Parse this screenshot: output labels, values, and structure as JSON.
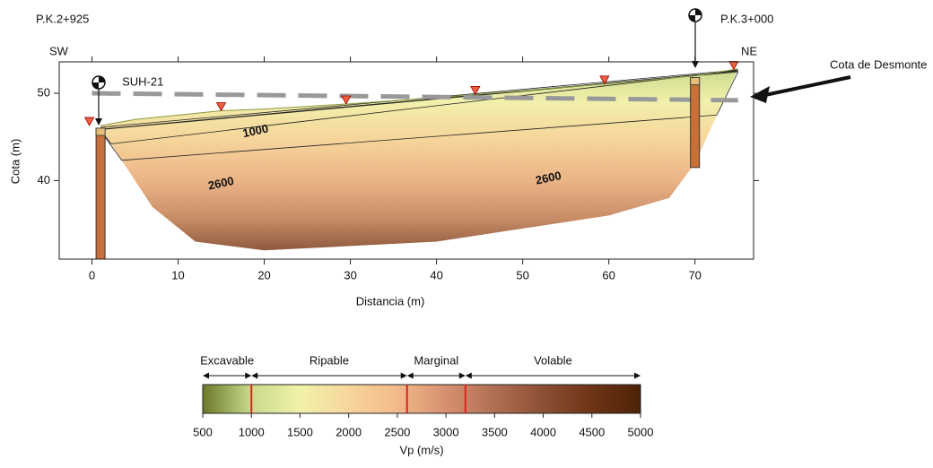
{
  "chart_data": [
    {
      "type": "section",
      "xlabel": "Distancia (m)",
      "ylabel": "Cota (m)",
      "xlim": [
        -3.8,
        76.8
      ],
      "ylim": [
        31,
        53.6
      ],
      "xticks": [
        0,
        10,
        20,
        30,
        40,
        50,
        60,
        70
      ],
      "yticks": [
        40,
        50
      ],
      "left_pk": "P.K.2+925",
      "right_pk": "P.K.3+000",
      "left_dir": "SW",
      "right_dir": "NE",
      "cut_label": "Cota de Desmonte",
      "surface": {
        "x": [
          1,
          5,
          10,
          15,
          20,
          30,
          40,
          50,
          60,
          70,
          75
        ],
        "y": [
          46.3,
          47,
          47.5,
          48,
          48.2,
          48.8,
          49.5,
          50.3,
          51.1,
          52,
          52.8
        ]
      },
      "base": {
        "x": [
          1,
          7,
          12,
          20,
          40,
          50,
          60,
          67,
          70,
          75
        ],
        "y": [
          46,
          37,
          33,
          32,
          33,
          34.5,
          36,
          38,
          42,
          52.8
        ]
      },
      "cut_level": {
        "x": [
          0,
          75
        ],
        "y": [
          50,
          49.2
        ]
      },
      "shots": {
        "x": [
          -0.3,
          15,
          29.5,
          44.5,
          59.5,
          74.5
        ]
      },
      "contours": [
        {
          "value": 1000,
          "label_x": 19,
          "label_y": 45.6
        },
        {
          "value": 2600,
          "label_x": 15,
          "label_y": 39.6
        },
        {
          "value": 2600,
          "label_x": 53,
          "label_y": 40.2
        }
      ],
      "boreholes": [
        {
          "name": "SUH-21",
          "x": 1,
          "top": 46,
          "bottom": 31
        },
        {
          "x": 70,
          "top": 51.8,
          "bottom": 41.5
        }
      ]
    },
    {
      "type": "colorbar",
      "xlabel": "Vp (m/s)",
      "xlim": [
        500,
        5000
      ],
      "xticks": [
        500,
        1000,
        1500,
        2000,
        2500,
        3000,
        3500,
        4000,
        4500,
        5000
      ],
      "stops": {
        "values": [
          500,
          1000,
          1500,
          2000,
          2500,
          3000,
          3500,
          4000,
          4500,
          5000
        ],
        "colors": [
          "#6b7a2a",
          "#c9da8c",
          "#f1f2aa",
          "#f7d69c",
          "#f3b98a",
          "#d69070",
          "#b06f52",
          "#8c4f33",
          "#6e3416",
          "#4e2206"
        ]
      },
      "classes": [
        {
          "name": "Excavable",
          "from": 500,
          "to": 1000
        },
        {
          "name": "Ripable",
          "from": 1000,
          "to": 2600
        },
        {
          "name": "Marginal",
          "from": 2600,
          "to": 3200
        },
        {
          "name": "Volable",
          "from": 3200,
          "to": 5000
        }
      ],
      "boundary_color": "#e02020"
    }
  ]
}
